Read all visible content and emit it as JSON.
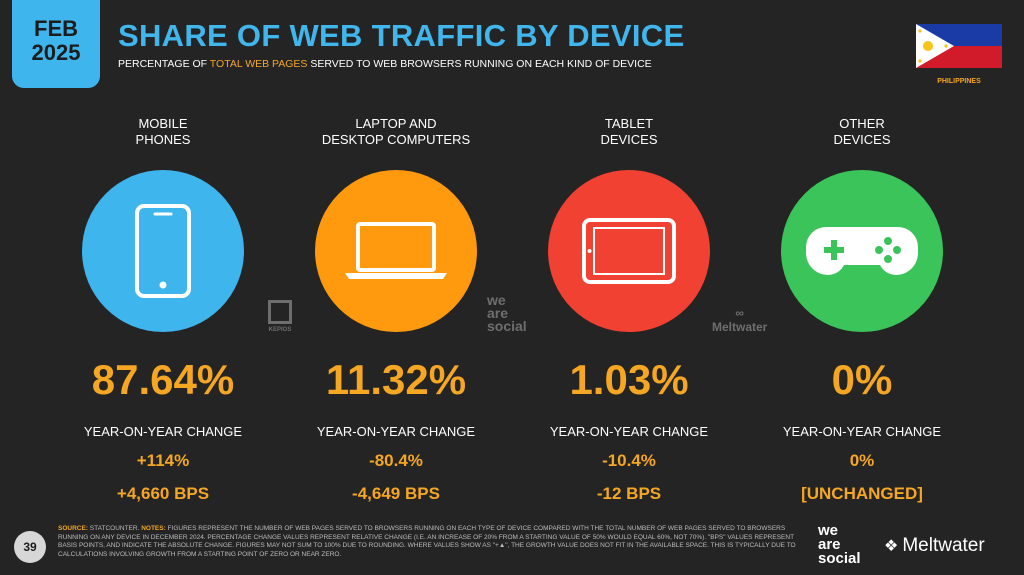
{
  "badge": {
    "month": "FEB",
    "year": "2025"
  },
  "title": "SHARE OF WEB TRAFFIC BY DEVICE",
  "subtitle": {
    "pre": "PERCENTAGE OF ",
    "highlight": "TOTAL WEB PAGES",
    "post": " SERVED TO WEB BROWSERS RUNNING ON EACH KIND OF DEVICE"
  },
  "country": "PHILIPPINES",
  "yoy_label": "YEAR-ON-YEAR CHANGE",
  "devices": [
    {
      "label_line1": "MOBILE",
      "label_line2": "PHONES",
      "icon": "mobile-phone-icon",
      "color": "#3fb5ee",
      "share": "87.64%",
      "change_pct": "+114%",
      "change_bps": "+4,660 BPS"
    },
    {
      "label_line1": "LAPTOP AND",
      "label_line2": "DESKTOP COMPUTERS",
      "icon": "laptop-icon",
      "color": "#ff9a0f",
      "share": "11.32%",
      "change_pct": "-80.4%",
      "change_bps": "-4,649 BPS"
    },
    {
      "label_line1": "TABLET",
      "label_line2": "DEVICES",
      "icon": "tablet-icon",
      "color": "#f04133",
      "share": "1.03%",
      "change_pct": "-10.4%",
      "change_bps": "-12 BPS"
    },
    {
      "label_line1": "OTHER",
      "label_line2": "DEVICES",
      "icon": "game-controller-icon",
      "color": "#3ac45a",
      "share": "0%",
      "change_pct": "0%",
      "change_bps": "[UNCHANGED]"
    }
  ],
  "watermarks": {
    "kepios": "KEPIOS",
    "wearesocial": [
      "we",
      "are",
      "social"
    ],
    "meltwater": "Meltwater"
  },
  "footer": {
    "page_number": "39",
    "source_label": "SOURCE:",
    "source": "STATCOUNTER.",
    "notes_label": "NOTES:",
    "notes": "FIGURES REPRESENT THE NUMBER OF WEB PAGES SERVED TO BROWSERS RUNNING ON EACH TYPE OF DEVICE COMPARED WITH THE TOTAL NUMBER OF WEB PAGES SERVED TO BROWSERS RUNNING ON ANY DEVICE IN DECEMBER 2024. PERCENTAGE CHANGE VALUES REPRESENT RELATIVE CHANGE (I.E. AN INCREASE OF 20% FROM A STARTING VALUE OF 50% WOULD EQUAL 60%, NOT 70%). \"BPS\" VALUES REPRESENT BASIS POINTS, AND INDICATE THE ABSOLUTE CHANGE. FIGURES MAY NOT SUM TO 100% DUE TO ROUNDING. WHERE VALUES SHOW AS \"+▲\", THE GROWTH VALUE DOES NOT FIT IN THE AVAILABLE SPACE. THIS IS TYPICALLY DUE TO CALCULATIONS INVOLVING GROWTH FROM A STARTING POINT OF ZERO OR NEAR ZERO.",
    "brand_ws": [
      "we",
      "are",
      "social"
    ],
    "brand_mw": "Meltwater"
  }
}
